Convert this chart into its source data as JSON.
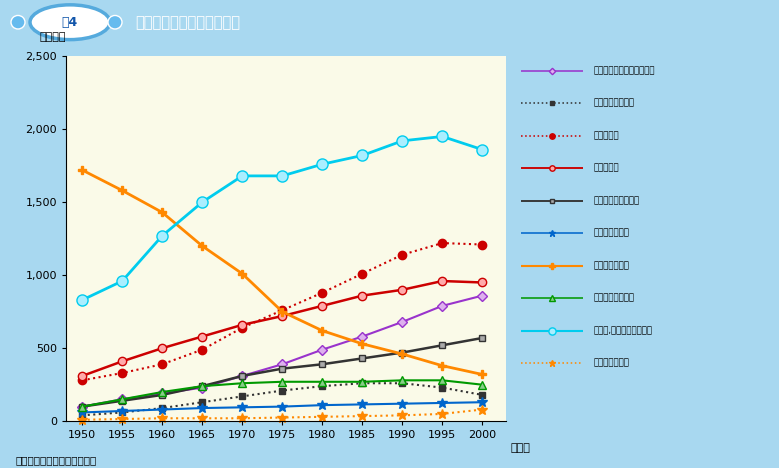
{
  "years": [
    1950,
    1955,
    1960,
    1965,
    1970,
    1975,
    1980,
    1985,
    1990,
    1995,
    2000
  ],
  "series": {
    "専門的・技術的職業従事者": {
      "values": [
        100,
        150,
        190,
        230,
        310,
        390,
        490,
        580,
        680,
        790,
        860
      ],
      "color": "#9933cc",
      "linestyle": "-",
      "marker": "D",
      "markersize": 5,
      "markerfacecolor": "#ddb0ee",
      "linewidth": 1.5
    },
    "管理的職業従事者": {
      "values": [
        40,
        60,
        90,
        130,
        170,
        210,
        240,
        260,
        260,
        230,
        180
      ],
      "color": "#333333",
      "linestyle": ":",
      "marker": "s",
      "markersize": 5,
      "markerfacecolor": "#333333",
      "linewidth": 1.5
    },
    "事務従事者": {
      "values": [
        280,
        330,
        390,
        490,
        640,
        760,
        880,
        1010,
        1140,
        1220,
        1210
      ],
      "color": "#cc0000",
      "linestyle": ":",
      "marker": "o",
      "markersize": 6,
      "markerfacecolor": "#cc0000",
      "linewidth": 1.5
    },
    "販売従事者": {
      "values": [
        310,
        410,
        500,
        580,
        660,
        720,
        790,
        860,
        900,
        960,
        950
      ],
      "color": "#cc0000",
      "linestyle": "-",
      "marker": "o",
      "markersize": 6,
      "markerfacecolor": "#ffaaaa",
      "linewidth": 1.8
    },
    "サービス職業従事者": {
      "values": [
        100,
        140,
        180,
        240,
        310,
        360,
        390,
        430,
        470,
        520,
        570
      ],
      "color": "#333333",
      "linestyle": "-",
      "marker": "s",
      "markersize": 5,
      "markerfacecolor": "#aaaaaa",
      "linewidth": 1.8
    },
    "保安職業従事者": {
      "values": [
        60,
        70,
        80,
        90,
        95,
        100,
        110,
        115,
        120,
        125,
        130
      ],
      "color": "#0066cc",
      "linestyle": "-",
      "marker": "*",
      "markersize": 7,
      "markerfacecolor": "#0066cc",
      "linewidth": 1.5
    },
    "農林漁業作業者": {
      "values": [
        1720,
        1580,
        1430,
        1200,
        1010,
        750,
        620,
        530,
        460,
        380,
        320
      ],
      "color": "#ff8800",
      "linestyle": "-",
      "marker": "P",
      "markersize": 6,
      "markerfacecolor": "#ff8800",
      "linewidth": 2.0
    },
    "運輸・通信従事者": {
      "values": [
        100,
        150,
        200,
        240,
        260,
        270,
        270,
        270,
        280,
        280,
        250
      ],
      "color": "#009900",
      "linestyle": "-",
      "marker": "^",
      "markersize": 6,
      "markerfacecolor": "#88cc88",
      "linewidth": 1.5
    },
    "技能工,採掘・製造・建設": {
      "values": [
        830,
        960,
        1270,
        1500,
        1680,
        1680,
        1760,
        1820,
        1920,
        1950,
        1860
      ],
      "color": "#00ccee",
      "linestyle": "-",
      "marker": "o",
      "markersize": 8,
      "markerfacecolor": "#aaeeff",
      "linewidth": 2.0
    },
    "分類不能の職業": {
      "values": [
        10,
        15,
        20,
        20,
        20,
        25,
        30,
        35,
        40,
        50,
        80
      ],
      "color": "#ff8800",
      "linestyle": ":",
      "marker": "*",
      "markersize": 7,
      "markerfacecolor": "#ff8800",
      "linewidth": 1.5
    }
  },
  "title": "職業分類別就業者数の推移",
  "fig_label": "図4",
  "ylabel": "（万人）",
  "xlabel_note": "（年）",
  "source": "（資料）総務省「国勢調査」",
  "ylim": [
    0,
    2500
  ],
  "yticks": [
    0,
    500,
    1000,
    1500,
    2000,
    2500
  ],
  "bg_color": "#fafae8",
  "outer_bg": "#a8d8f0",
  "header_bg": "#2277bb",
  "legend_bg": "#d4d4d4"
}
